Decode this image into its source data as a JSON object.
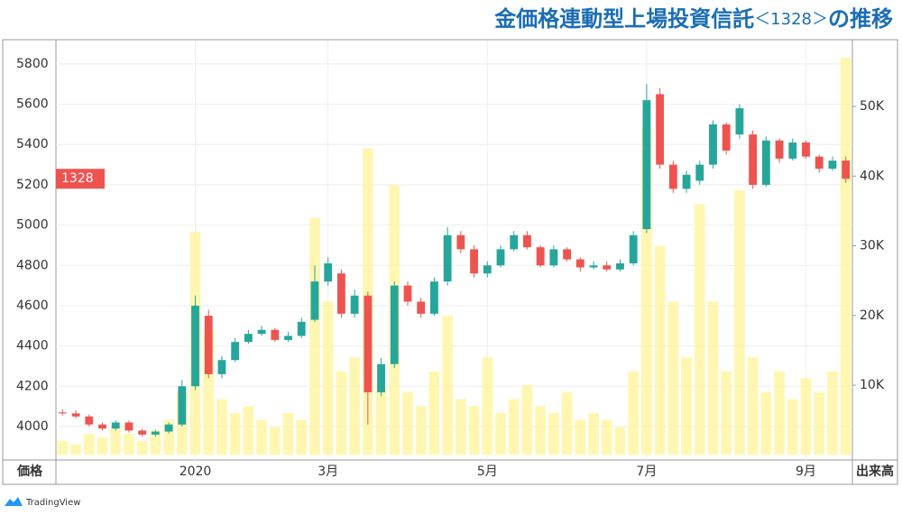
{
  "chart_data": {
    "type": "candlestick",
    "title": [
      "金価格連動型上場投資信託",
      "＜1328＞",
      "の推移"
    ],
    "symbol": "1328",
    "y_label": "価格",
    "y2_label": "出来高",
    "footer": "TradingView",
    "categories": [
      null,
      null,
      null,
      null,
      null,
      null,
      null,
      null,
      null,
      null,
      "2020",
      null,
      null,
      null,
      null,
      null,
      null,
      null,
      null,
      null,
      "3月",
      null,
      null,
      null,
      null,
      null,
      null,
      null,
      null,
      null,
      null,
      null,
      "5月",
      null,
      null,
      null,
      null,
      null,
      null,
      null,
      null,
      null,
      null,
      null,
      "7月",
      null,
      null,
      null,
      null,
      null,
      null,
      null,
      null,
      null,
      null,
      null,
      "9月",
      null,
      null,
      null
    ],
    "open": [
      4070,
      4065,
      4050,
      4010,
      3990,
      4020,
      3980,
      3960,
      3975,
      4010,
      4200,
      4550,
      4260,
      4330,
      4420,
      4460,
      4480,
      4430,
      4450,
      4530,
      4720,
      4760,
      4560,
      4650,
      4170,
      4310,
      4700,
      4620,
      4560,
      4720,
      4950,
      4880,
      4760,
      4800,
      4880,
      4950,
      4890,
      4800,
      4880,
      4830,
      4790,
      4800,
      4780,
      4810,
      4980,
      5650,
      5300,
      5180,
      5220,
      5300,
      5500,
      5450,
      5450,
      5200,
      5420,
      5330,
      5410,
      5340,
      5280,
      5320
    ],
    "high": [
      4085,
      4080,
      4060,
      4020,
      4030,
      4030,
      3990,
      3985,
      4020,
      4230,
      4650,
      4580,
      4350,
      4440,
      4480,
      4500,
      4490,
      4470,
      4540,
      4800,
      4840,
      4780,
      4680,
      4670,
      4340,
      4720,
      4720,
      4640,
      4740,
      4990,
      4970,
      4900,
      4820,
      4900,
      4970,
      4970,
      4900,
      4900,
      4890,
      4840,
      4820,
      4820,
      4830,
      4970,
      5700,
      5680,
      5320,
      5270,
      5320,
      5520,
      5510,
      5600,
      5470,
      5440,
      5430,
      5430,
      5420,
      5350,
      5340,
      5340
    ],
    "low": [
      4055,
      4040,
      4000,
      3980,
      3980,
      3970,
      3950,
      3950,
      3965,
      4000,
      4180,
      4240,
      4240,
      4320,
      4410,
      4450,
      4420,
      4420,
      4440,
      4520,
      4700,
      4540,
      4540,
      4010,
      4150,
      4290,
      4600,
      4540,
      4550,
      4700,
      4860,
      4740,
      4740,
      4790,
      4870,
      4880,
      4790,
      4790,
      4820,
      4770,
      4780,
      4770,
      4770,
      4800,
      4960,
      5280,
      5160,
      5160,
      5200,
      5280,
      5350,
      5430,
      5180,
      5190,
      5310,
      5320,
      5330,
      5260,
      5270,
      5210
    ],
    "close": [
      4065,
      4050,
      4010,
      3990,
      4020,
      3980,
      3960,
      3975,
      4010,
      4200,
      4600,
      4260,
      4330,
      4420,
      4460,
      4480,
      4430,
      4450,
      4520,
      4720,
      4810,
      4560,
      4650,
      4170,
      4310,
      4700,
      4620,
      4560,
      4720,
      4950,
      4880,
      4760,
      4800,
      4880,
      4950,
      4890,
      4800,
      4880,
      4830,
      4790,
      4800,
      4780,
      4810,
      4950,
      5620,
      5300,
      5180,
      5250,
      5300,
      5500,
      5370,
      5580,
      5200,
      5420,
      5330,
      5410,
      5340,
      5280,
      5320,
      5230
    ],
    "volume": [
      2000,
      1500,
      3000,
      2500,
      4000,
      3000,
      2000,
      3500,
      5000,
      9000,
      32000,
      18000,
      8000,
      6000,
      7000,
      5000,
      4000,
      6000,
      5000,
      34000,
      22000,
      12000,
      14000,
      44000,
      10000,
      38700,
      9000,
      7000,
      12000,
      20000,
      8000,
      7000,
      14000,
      6000,
      8000,
      10000,
      7000,
      6000,
      9000,
      5000,
      6000,
      5000,
      4000,
      12000,
      47000,
      30000,
      22000,
      14000,
      36000,
      22000,
      12000,
      38000,
      14000,
      9000,
      12000,
      8000,
      11000,
      9000,
      12000,
      57000
    ],
    "up_color": "#26a69a",
    "down_color": "#ef5350",
    "volume_color": "#fff59d",
    "ylim": [
      3834,
      5916
    ],
    "yticks": [
      4000,
      4200,
      4400,
      4600,
      4800,
      5000,
      5200,
      5400,
      5600,
      5800
    ],
    "y2lim": [
      -740,
      59450
    ],
    "y2ticks": [
      {
        "value": 10000,
        "label": "10K"
      },
      {
        "value": 20000,
        "label": "20K"
      },
      {
        "value": 30000,
        "label": "30K"
      },
      {
        "value": 40000,
        "label": "40K"
      },
      {
        "value": 50000,
        "label": "50K"
      }
    ],
    "grid": true
  }
}
